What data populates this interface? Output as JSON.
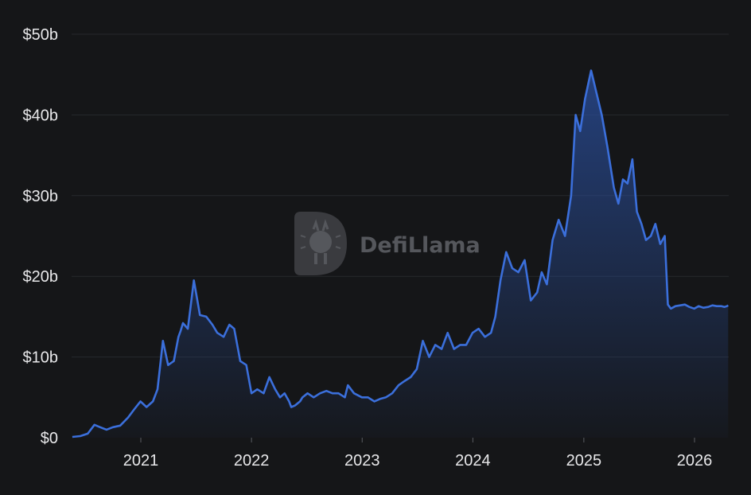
{
  "watermark": {
    "text": "DefiLlama"
  },
  "colors": {
    "background": "#151618",
    "line": "#3b6fdb",
    "fill_top": "#2a4f9e",
    "grid": "#26282c",
    "text": "#e8e8ea"
  },
  "chart_data": {
    "type": "area",
    "title": "",
    "xlabel": "",
    "ylabel": "",
    "ylim": [
      0,
      50
    ],
    "y_unit": "billion USD",
    "grid": "horizontal",
    "legend": "none",
    "y_ticks": [
      {
        "value": 0,
        "label": "$0"
      },
      {
        "value": 10,
        "label": "$10b"
      },
      {
        "value": 20,
        "label": "$20b"
      },
      {
        "value": 30,
        "label": "$30b"
      },
      {
        "value": 40,
        "label": "$40b"
      },
      {
        "value": 50,
        "label": "$50b"
      }
    ],
    "x_ticks": [
      {
        "value": "2021-01-01",
        "label": "2021"
      },
      {
        "value": "2022-01-01",
        "label": "2022"
      },
      {
        "value": "2023-01-01",
        "label": "2023"
      },
      {
        "value": "2024-01-01",
        "label": "2024"
      },
      {
        "value": "2025-01-01",
        "label": "2025"
      },
      {
        "value": "2026-01-01",
        "label": "2026"
      }
    ],
    "series": [
      {
        "x": [
          "2020-05-20",
          "2020-06-15",
          "2020-07-10",
          "2020-08-01",
          "2020-08-20",
          "2020-09-10",
          "2020-10-01",
          "2020-10-25",
          "2020-11-20",
          "2020-12-10",
          "2020-12-31",
          "2021-01-20",
          "2021-02-10",
          "2021-02-25",
          "2021-03-15",
          "2021-04-01",
          "2021-04-20",
          "2021-05-05",
          "2021-05-12",
          "2021-05-20",
          "2021-06-05",
          "2021-06-25",
          "2021-07-15",
          "2021-08-05",
          "2021-08-25",
          "2021-09-10",
          "2021-10-01",
          "2021-10-20",
          "2021-11-05",
          "2021-11-25",
          "2021-12-15",
          "2022-01-01",
          "2022-01-20",
          "2022-02-10",
          "2022-03-01",
          "2022-03-20",
          "2022-04-05",
          "2022-04-20",
          "2022-05-05",
          "2022-05-12",
          "2022-05-25",
          "2022-06-10",
          "2022-06-18",
          "2022-07-05",
          "2022-07-25",
          "2022-08-15",
          "2022-09-05",
          "2022-09-25",
          "2022-10-15",
          "2022-11-05",
          "2022-11-15",
          "2022-12-05",
          "2022-12-31",
          "2023-01-20",
          "2023-02-10",
          "2023-03-01",
          "2023-03-20",
          "2023-04-10",
          "2023-05-01",
          "2023-05-20",
          "2023-06-10",
          "2023-06-30",
          "2023-07-20",
          "2023-08-10",
          "2023-08-30",
          "2023-09-20",
          "2023-10-10",
          "2023-10-31",
          "2023-11-20",
          "2023-12-10",
          "2023-12-31",
          "2024-01-20",
          "2024-02-10",
          "2024-03-01",
          "2024-03-15",
          "2024-04-01",
          "2024-04-20",
          "2024-05-10",
          "2024-05-30",
          "2024-06-20",
          "2024-07-10",
          "2024-07-31",
          "2024-08-15",
          "2024-09-01",
          "2024-09-20",
          "2024-10-10",
          "2024-10-31",
          "2024-11-20",
          "2024-12-05",
          "2024-12-20",
          "2025-01-05",
          "2025-01-25",
          "2025-02-10",
          "2025-03-01",
          "2025-03-20",
          "2025-04-10",
          "2025-04-25",
          "2025-05-10",
          "2025-05-25",
          "2025-06-10",
          "2025-06-25",
          "2025-07-10",
          "2025-07-25",
          "2025-08-10",
          "2025-08-25",
          "2025-09-10",
          "2025-09-25",
          "2025-10-05",
          "2025-10-15",
          "2025-10-30",
          "2025-11-15",
          "2025-11-30",
          "2025-12-15",
          "2025-12-31",
          "2026-01-15",
          "2026-01-30",
          "2026-02-15",
          "2026-03-01",
          "2026-03-15",
          "2026-03-31",
          "2026-04-10",
          "2026-04-18",
          "2026-04-22"
        ],
        "values": [
          0.1,
          0.2,
          0.5,
          1.6,
          1.3,
          1.0,
          1.3,
          1.5,
          2.5,
          3.5,
          4.5,
          3.8,
          4.5,
          6.0,
          12.0,
          9.0,
          9.5,
          12.5,
          13.2,
          14.2,
          13.5,
          19.5,
          15.2,
          15.0,
          14.0,
          13.0,
          12.5,
          14.0,
          13.5,
          9.5,
          9.0,
          5.5,
          6.0,
          5.5,
          7.5,
          6.0,
          5.0,
          5.5,
          4.5,
          3.8,
          4.0,
          4.5,
          5.0,
          5.5,
          5.0,
          5.5,
          5.8,
          5.5,
          5.5,
          5.0,
          6.5,
          5.5,
          5.0,
          5.0,
          4.5,
          4.8,
          5.0,
          5.5,
          6.5,
          7.0,
          7.5,
          8.5,
          12.0,
          10.0,
          11.5,
          11.0,
          13.0,
          11.0,
          11.5,
          11.5,
          13.0,
          13.5,
          12.5,
          13.0,
          15.0,
          19.5,
          23.0,
          21.0,
          20.5,
          22.0,
          17.0,
          18.0,
          20.5,
          19.0,
          24.5,
          27.0,
          25.0,
          30.0,
          40.0,
          38.0,
          42.0,
          45.5,
          43.0,
          40.0,
          36.0,
          31.0,
          29.0,
          32.0,
          31.5,
          34.5,
          28.0,
          26.5,
          24.5,
          25.0,
          26.5,
          24.0,
          25.0,
          16.5,
          16.0,
          16.3,
          16.4,
          16.5,
          16.2,
          16.0,
          16.3,
          16.1,
          16.2,
          16.4,
          16.3,
          16.3,
          16.2,
          16.3,
          16.4
        ]
      }
    ]
  }
}
